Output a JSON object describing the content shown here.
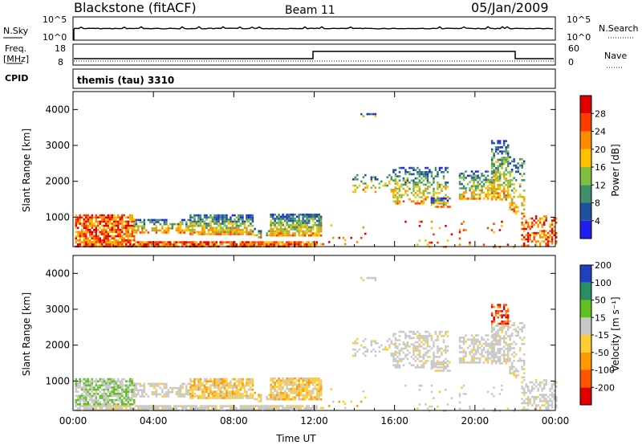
{
  "header": {
    "station": "Blackstone (fitACF)",
    "beam": "Beam 11",
    "date": "05/Jan/2009"
  },
  "strip_labels": {
    "nsky": "N.Sky",
    "nsky_ticks": [
      "10^5",
      "10^0"
    ],
    "nsearch": "N.Search",
    "nsearch_ticks": [
      "10^5",
      "10^0"
    ],
    "freq": "Freq.",
    "freq_unit": "[MHz]",
    "freq_ticks": [
      "18",
      "8"
    ],
    "nave": "Nave",
    "nave_ticks": [
      "60",
      "0"
    ],
    "cpid": "CPID",
    "cpid_text": "themis (tau) 3310"
  },
  "colors": {
    "power": [
      "#2020ee",
      "#2050a0",
      "#3f8f6a",
      "#7fc040",
      "#ffc000",
      "#ff8c00",
      "#ff3c00",
      "#e00000"
    ],
    "velocity": [
      "#e00000",
      "#ff5500",
      "#ff9900",
      "#ffcc33",
      "#c8c8c8",
      "#60c020",
      "#2a8f60",
      "#2040c0"
    ]
  },
  "chart_data": [
    {
      "type": "heatmap",
      "name": "power",
      "x_ticks": [
        "00:00",
        "04:00",
        "08:00",
        "12:00",
        "16:00",
        "20:00",
        "00:00"
      ],
      "xlim_hours": [
        0,
        24
      ],
      "ylabel": "Slant Range [km]",
      "ylim": [
        180,
        4500
      ],
      "y_ticks": [
        1000,
        2000,
        3000,
        4000
      ],
      "colorbar_label": "Power [dB]",
      "colorbar_ticks": [
        "4",
        "8",
        "12",
        "16",
        "20",
        "24",
        "28"
      ],
      "colorbar_range": [
        0,
        32
      ]
    },
    {
      "type": "heatmap",
      "name": "velocity",
      "xlabel": "Time UT",
      "x_ticks": [
        "00:00",
        "04:00",
        "08:00",
        "12:00",
        "16:00",
        "20:00",
        "00:00"
      ],
      "xlim_hours": [
        0,
        24
      ],
      "ylabel": "Slant Range [km]",
      "ylim": [
        180,
        4500
      ],
      "y_ticks": [
        1000,
        2000,
        3000,
        4000
      ],
      "colorbar_label": "Velocity [m s⁻¹]",
      "colorbar_ticks": [
        "200",
        "100",
        "50",
        "15",
        "-15",
        "-50",
        "-100",
        "-200"
      ]
    }
  ]
}
